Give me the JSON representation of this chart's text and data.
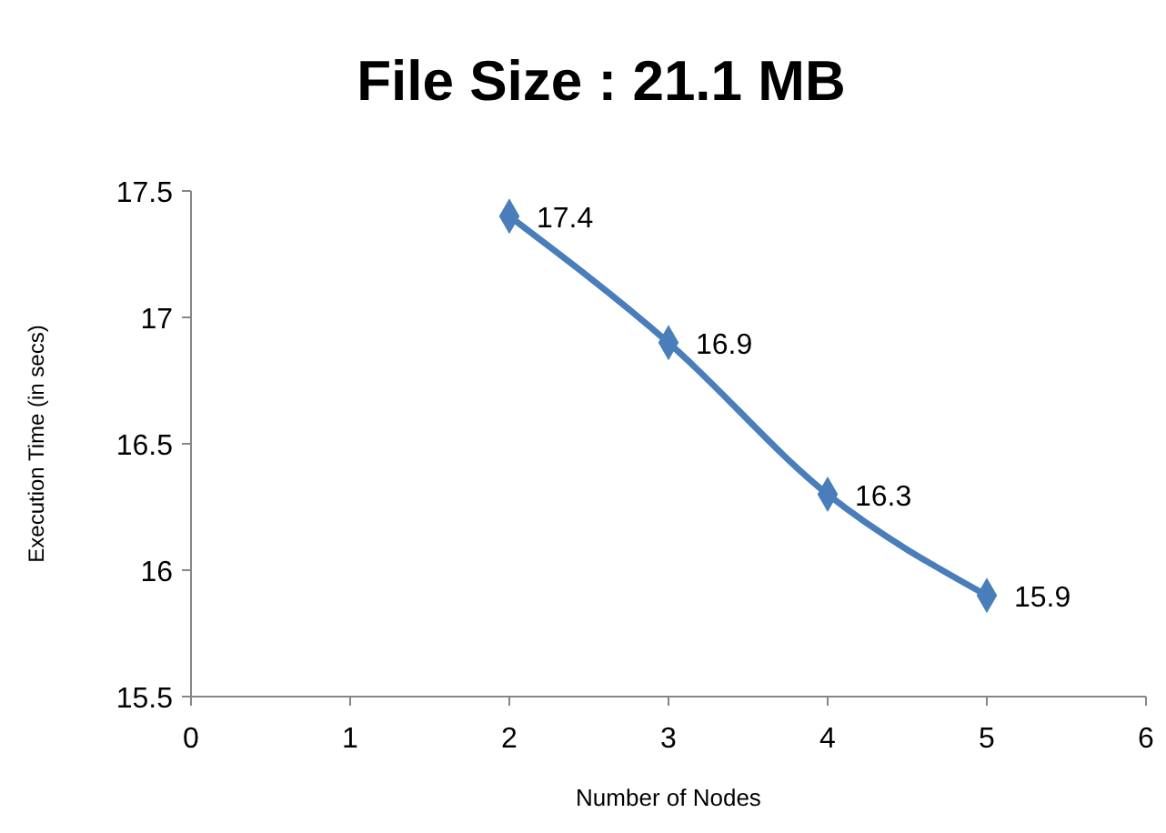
{
  "chart_data": {
    "type": "line",
    "title": "File Size : 21.1 MB",
    "xlabel": "Number of Nodes",
    "ylabel": "Execution Time (in secs)",
    "x": [
      2,
      3,
      4,
      5
    ],
    "series": [
      {
        "color": "#4a7ebb",
        "values": [
          17.4,
          16.9,
          16.3,
          15.9
        ]
      }
    ],
    "xlim": [
      0,
      6
    ],
    "xticks": [
      0,
      1,
      2,
      3,
      4,
      5,
      6
    ],
    "ylim": [
      15.5,
      17.5
    ],
    "yticks": [
      15.5,
      16,
      16.5,
      17,
      17.5
    ],
    "marker": "diamond",
    "line_style": "solid",
    "data_labels": true
  }
}
